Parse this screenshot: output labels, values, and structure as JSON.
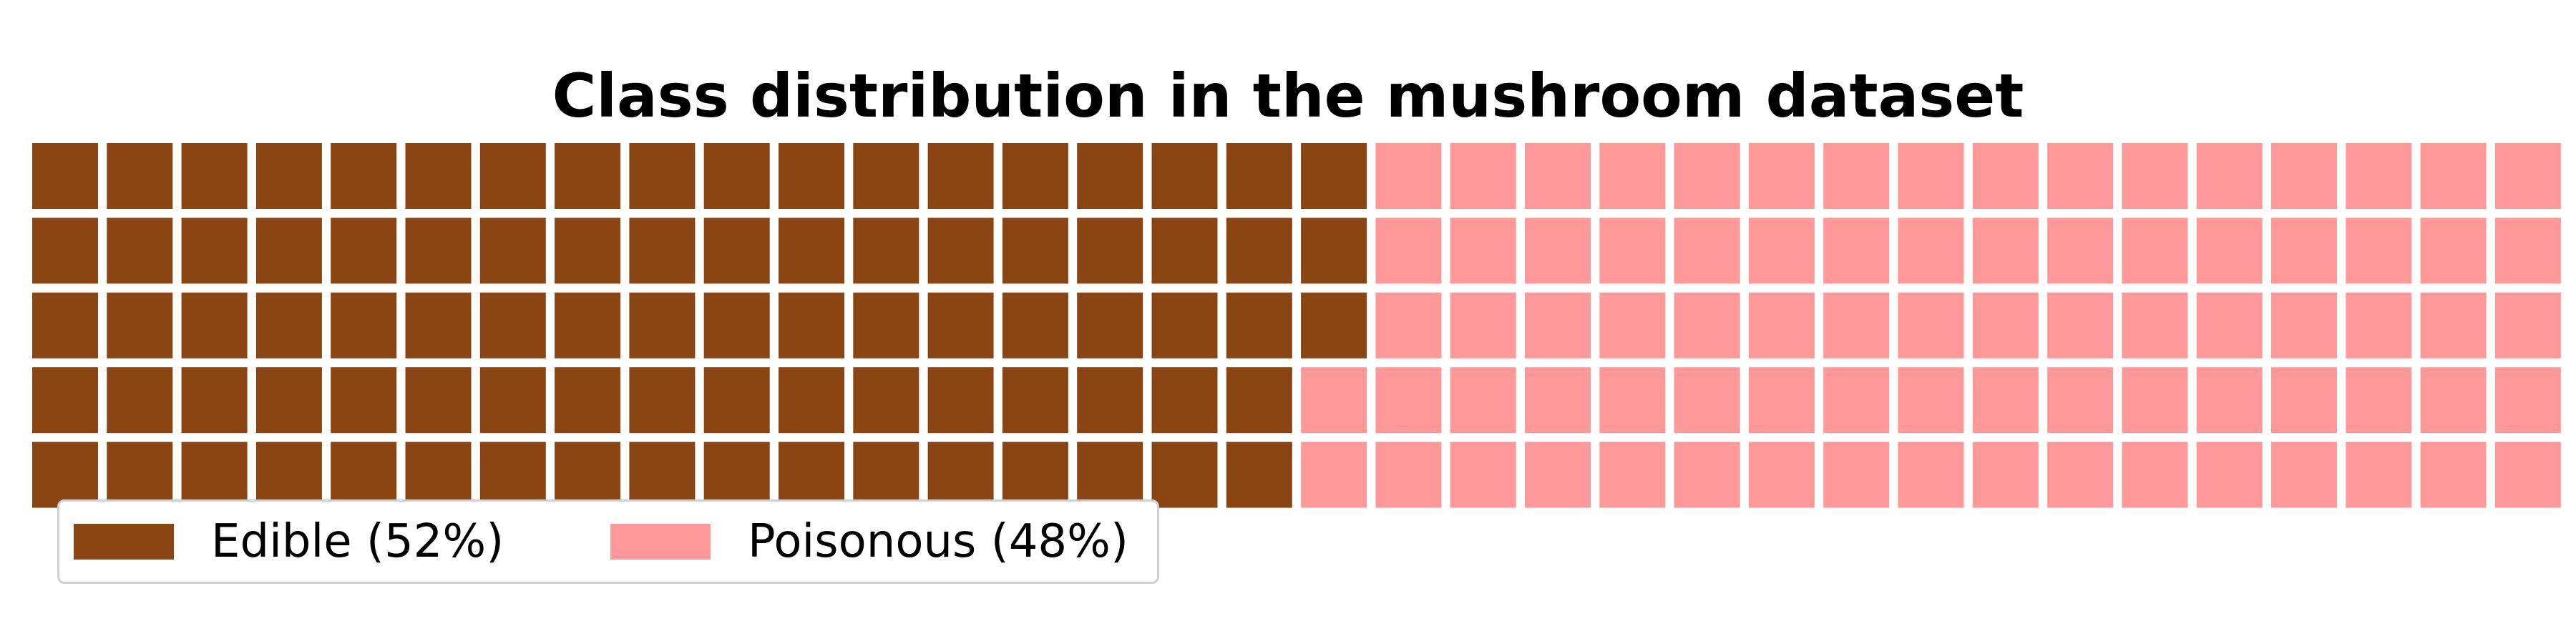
{
  "chart_data": {
    "type": "waffle",
    "title": "Class distribution in the mushroom dataset",
    "rows": 5,
    "columns": 34,
    "fill_order": "column-major, top to bottom, left to right",
    "categories": [
      "Edible (52%)",
      "Poisonous (48%)"
    ],
    "values": [
      88,
      82
    ],
    "percentages": [
      52,
      48
    ],
    "colors": [
      "#8B4513",
      "#FF9999"
    ],
    "legend": {
      "placement": "bottom-left",
      "items": [
        {
          "label": "Edible (52%)",
          "color": "#8B4513"
        },
        {
          "label": "Poisonous (48%)",
          "color": "#FF9999"
        }
      ]
    }
  }
}
